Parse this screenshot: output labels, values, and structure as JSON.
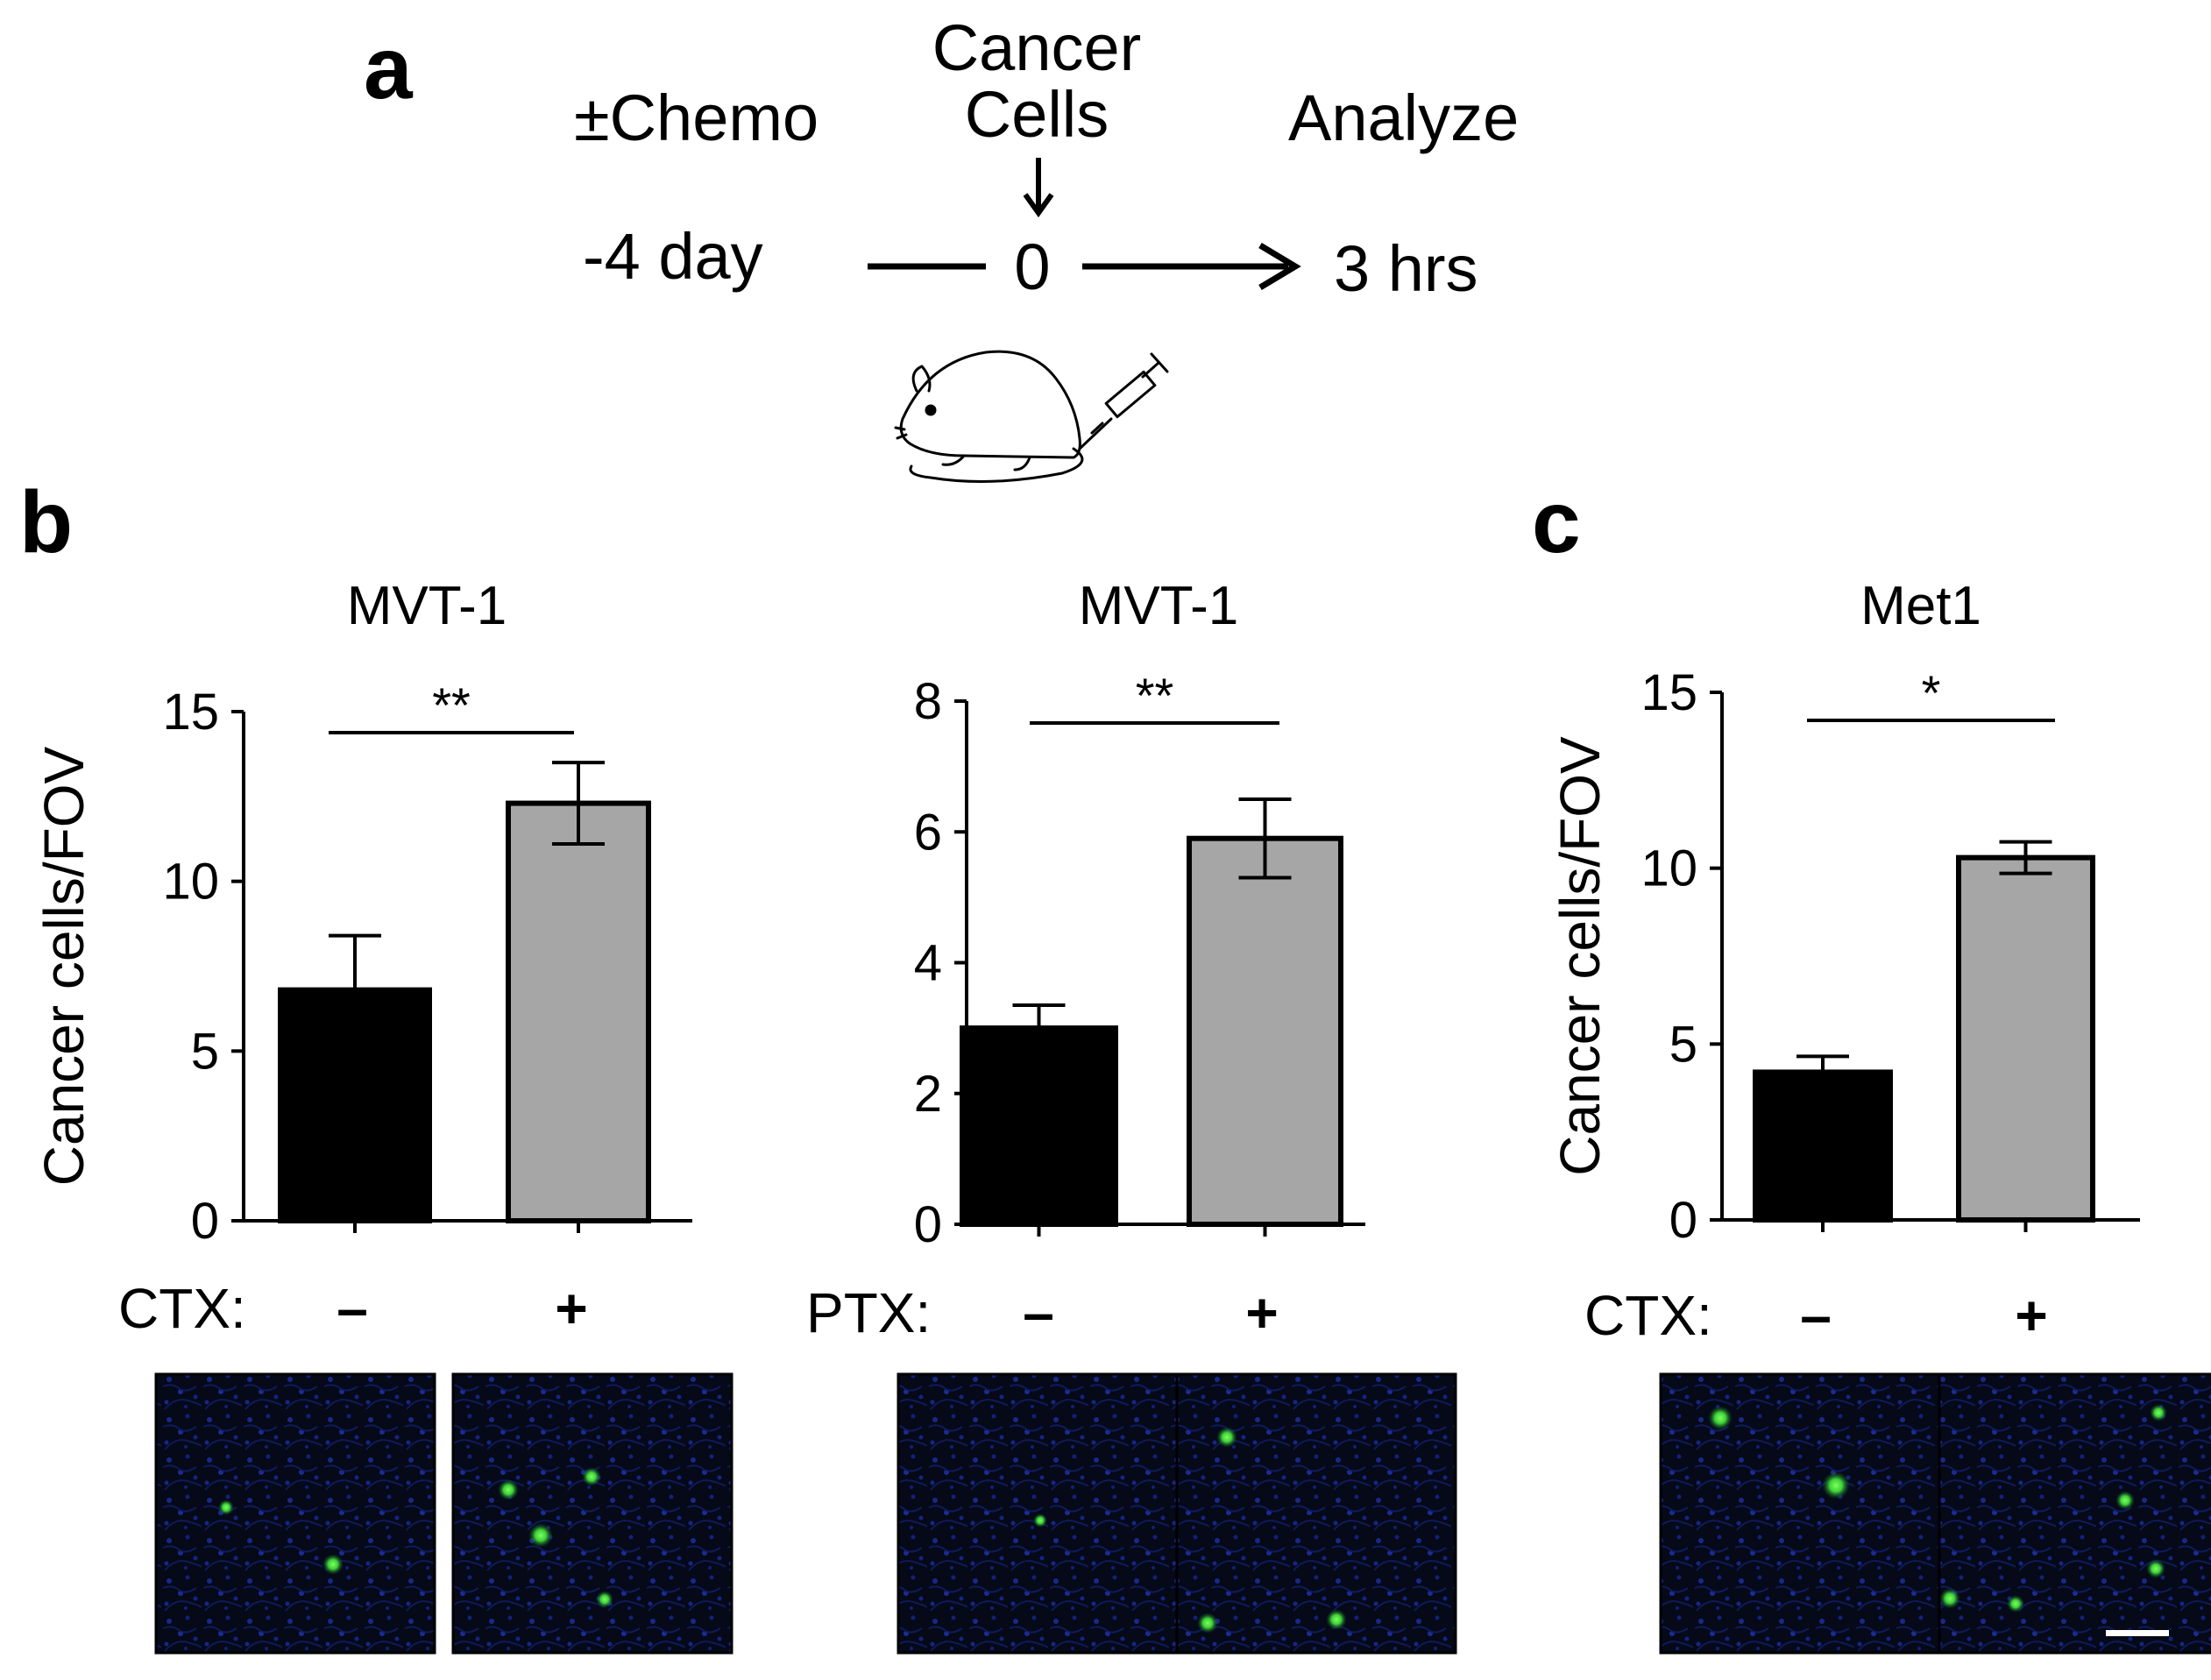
{
  "panels": {
    "a": "a",
    "b": "b",
    "c": "c"
  },
  "timeline": {
    "treatment_label": "±Chemo",
    "injection_label_line1": "Cancer",
    "injection_label_line2": "Cells",
    "analysis_label": "Analyze",
    "time_start": "-4 day",
    "time_zero": "0",
    "time_end": "3 hrs",
    "icon": "mouse-with-syringe-icon"
  },
  "chart_data": [
    {
      "type": "bar",
      "panel": "b",
      "title": "MVT-1",
      "ylabel": "Cancer cells/FOV",
      "xlabel": "",
      "treatment": "CTX:",
      "categories": [
        "–",
        "+"
      ],
      "values": [
        6.8,
        12.3
      ],
      "errors": [
        1.6,
        1.2
      ],
      "bar_colors": [
        "#000000",
        "#a6a6a6"
      ],
      "ylim": [
        0,
        15
      ],
      "yticks": [
        0,
        5,
        10,
        15
      ],
      "significance": "**",
      "images": [
        "CTX – lung section",
        "CTX + lung section"
      ]
    },
    {
      "type": "bar",
      "panel": "b",
      "title": "MVT-1",
      "ylabel": "",
      "xlabel": "",
      "treatment": "PTX:",
      "categories": [
        "–",
        "+"
      ],
      "values": [
        3.0,
        5.9
      ],
      "errors": [
        0.35,
        0.6
      ],
      "bar_colors": [
        "#000000",
        "#a6a6a6"
      ],
      "ylim": [
        0,
        8
      ],
      "yticks": [
        0,
        2,
        4,
        6,
        8
      ],
      "significance": "**",
      "images": [
        "PTX – lung section",
        "PTX + lung section"
      ]
    },
    {
      "type": "bar",
      "panel": "c",
      "title": "Met1",
      "ylabel": "Cancer cells/FOV",
      "xlabel": "",
      "treatment": "CTX:",
      "categories": [
        "–",
        "+"
      ],
      "values": [
        4.2,
        10.3
      ],
      "errors": [
        0.45,
        0.45
      ],
      "bar_colors": [
        "#000000",
        "#a6a6a6"
      ],
      "ylim": [
        0,
        15
      ],
      "yticks": [
        0,
        5,
        10,
        15
      ],
      "significance": "*",
      "images": [
        "CTX – lung section",
        "CTX + lung section"
      ]
    }
  ]
}
